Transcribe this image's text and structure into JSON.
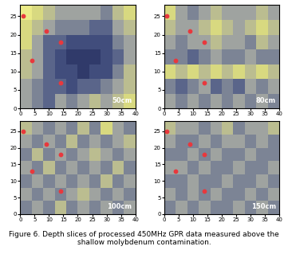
{
  "chart_data": [
    {
      "type": "heatmap",
      "label": "50cm",
      "x_edges": [
        0,
        4,
        8,
        12,
        16,
        20,
        24,
        28,
        32,
        36,
        40
      ],
      "y_edges": [
        0,
        4,
        8,
        12,
        16,
        20,
        24,
        28
      ],
      "xlim": [
        0,
        40
      ],
      "ylim": [
        0,
        28
      ],
      "xticks": [
        0,
        5,
        10,
        15,
        20,
        25,
        30,
        35,
        40
      ],
      "yticks": [
        0,
        5,
        10,
        15,
        20,
        25
      ],
      "color_range": [
        0,
        1
      ],
      "cells": [
        [
          0.5,
          0.4,
          0.3,
          0.5,
          0.4,
          0.5,
          0.6,
          0.5,
          0.6,
          0.7
        ],
        [
          0.5,
          0.4,
          0.3,
          0.3,
          0.2,
          0.3,
          0.3,
          0.4,
          0.5,
          0.6
        ],
        [
          0.6,
          0.5,
          0.3,
          0.2,
          0.2,
          0.1,
          0.2,
          0.2,
          0.4,
          0.6
        ],
        [
          0.6,
          0.5,
          0.3,
          0.2,
          0.1,
          0.1,
          0.1,
          0.2,
          0.3,
          0.5
        ],
        [
          0.7,
          0.5,
          0.3,
          0.3,
          0.2,
          0.2,
          0.2,
          0.2,
          0.4,
          0.5
        ],
        [
          0.7,
          0.6,
          0.5,
          0.4,
          0.4,
          0.4,
          0.3,
          0.3,
          0.5,
          0.6
        ],
        [
          0.8,
          0.7,
          0.6,
          0.5,
          0.5,
          0.5,
          0.5,
          0.4,
          0.6,
          0.7
        ]
      ],
      "points": {
        "x": [
          1,
          4,
          9,
          14,
          14
        ],
        "y": [
          25,
          13,
          21,
          18,
          7
        ],
        "color": "#e8383d",
        "marker": "o"
      }
    },
    {
      "type": "heatmap",
      "label": "80cm",
      "x_edges": [
        0,
        4,
        8,
        12,
        16,
        20,
        24,
        28,
        32,
        36,
        40
      ],
      "y_edges": [
        0,
        4,
        8,
        12,
        16,
        20,
        24,
        28
      ],
      "xlim": [
        0,
        40
      ],
      "ylim": [
        0,
        28
      ],
      "xticks": [
        0,
        5,
        10,
        15,
        20,
        25,
        30,
        35,
        40
      ],
      "yticks": [
        0,
        5,
        10,
        15,
        20,
        25
      ],
      "color_range": [
        0,
        1
      ],
      "cells": [
        [
          0.5,
          0.4,
          0.5,
          0.4,
          0.5,
          0.4,
          0.5,
          0.4,
          0.5,
          0.4
        ],
        [
          0.4,
          0.3,
          0.4,
          0.5,
          0.3,
          0.4,
          0.3,
          0.5,
          0.4,
          0.5
        ],
        [
          0.7,
          0.6,
          0.7,
          0.6,
          0.7,
          0.6,
          0.7,
          0.6,
          0.7,
          0.6
        ],
        [
          0.4,
          0.4,
          0.3,
          0.4,
          0.5,
          0.4,
          0.4,
          0.5,
          0.4,
          0.4
        ],
        [
          0.5,
          0.4,
          0.5,
          0.5,
          0.6,
          0.5,
          0.5,
          0.4,
          0.6,
          0.5
        ],
        [
          0.6,
          0.5,
          0.5,
          0.6,
          0.7,
          0.6,
          0.5,
          0.6,
          0.7,
          0.6
        ],
        [
          0.7,
          0.5,
          0.4,
          0.5,
          0.6,
          0.5,
          0.5,
          0.5,
          0.6,
          0.5
        ]
      ],
      "points": {
        "x": [
          1,
          4,
          9,
          14,
          14
        ],
        "y": [
          25,
          13,
          21,
          18,
          7
        ],
        "color": "#e8383d",
        "marker": "o"
      }
    },
    {
      "type": "heatmap",
      "label": "100cm",
      "x_edges": [
        0,
        4,
        8,
        12,
        16,
        20,
        24,
        28,
        32,
        36,
        40
      ],
      "y_edges": [
        0,
        4,
        8,
        12,
        16,
        20,
        24,
        28
      ],
      "xlim": [
        0,
        40
      ],
      "ylim": [
        0,
        28
      ],
      "xticks": [
        0,
        5,
        10,
        15,
        20,
        25,
        30,
        35,
        40
      ],
      "yticks": [
        0,
        5,
        10,
        15,
        20,
        25
      ],
      "color_range": [
        0,
        1
      ],
      "cells": [
        [
          0.4,
          0.5,
          0.4,
          0.6,
          0.4,
          0.5,
          0.4,
          0.5,
          0.4,
          0.5
        ],
        [
          0.5,
          0.4,
          0.5,
          0.4,
          0.5,
          0.6,
          0.5,
          0.4,
          0.5,
          0.4
        ],
        [
          0.4,
          0.5,
          0.4,
          0.5,
          0.4,
          0.5,
          0.4,
          0.6,
          0.4,
          0.5
        ],
        [
          0.5,
          0.4,
          0.6,
          0.4,
          0.5,
          0.4,
          0.5,
          0.4,
          0.6,
          0.4
        ],
        [
          0.4,
          0.6,
          0.4,
          0.5,
          0.4,
          0.5,
          0.6,
          0.5,
          0.4,
          0.5
        ],
        [
          0.5,
          0.4,
          0.5,
          0.4,
          0.6,
          0.4,
          0.5,
          0.4,
          0.5,
          0.6
        ],
        [
          0.6,
          0.5,
          0.4,
          0.5,
          0.4,
          0.6,
          0.4,
          0.7,
          0.5,
          0.4
        ]
      ],
      "points": {
        "x": [
          1,
          4,
          9,
          14,
          14
        ],
        "y": [
          25,
          13,
          21,
          18,
          7
        ],
        "color": "#e8383d",
        "marker": "o"
      }
    },
    {
      "type": "heatmap",
      "label": "150cm",
      "x_edges": [
        0,
        4,
        8,
        12,
        16,
        20,
        24,
        28,
        32,
        36,
        40
      ],
      "y_edges": [
        0,
        4,
        8,
        12,
        16,
        20,
        24,
        28
      ],
      "xlim": [
        0,
        40
      ],
      "ylim": [
        0,
        28
      ],
      "xticks": [
        0,
        5,
        10,
        15,
        20,
        25,
        30,
        35,
        40
      ],
      "yticks": [
        0,
        5,
        10,
        15,
        20,
        25
      ],
      "color_range": [
        0,
        1
      ],
      "cells": [
        [
          0.4,
          0.5,
          0.4,
          0.5,
          0.4,
          0.4,
          0.5,
          0.4,
          0.5,
          0.4
        ],
        [
          0.5,
          0.4,
          0.5,
          0.4,
          0.5,
          0.4,
          0.4,
          0.5,
          0.4,
          0.5
        ],
        [
          0.4,
          0.4,
          0.5,
          0.4,
          0.4,
          0.5,
          0.4,
          0.4,
          0.5,
          0.4
        ],
        [
          0.5,
          0.5,
          0.4,
          0.5,
          0.4,
          0.4,
          0.5,
          0.4,
          0.4,
          0.5
        ],
        [
          0.4,
          0.4,
          0.5,
          0.4,
          0.5,
          0.4,
          0.4,
          0.5,
          0.4,
          0.4
        ],
        [
          0.5,
          0.4,
          0.4,
          0.5,
          0.4,
          0.5,
          0.5,
          0.4,
          0.5,
          0.4
        ],
        [
          0.6,
          0.5,
          0.5,
          0.4,
          0.5,
          0.6,
          0.4,
          0.5,
          0.5,
          0.6
        ]
      ],
      "points": {
        "x": [
          1,
          4,
          9,
          14,
          14
        ],
        "y": [
          25,
          13,
          21,
          18,
          7
        ],
        "color": "#e8383d",
        "marker": "o"
      }
    }
  ],
  "caption": "Figure 6. Depth slices of processed 450MHz GPR data measured above the shallow molybdenum contamination."
}
